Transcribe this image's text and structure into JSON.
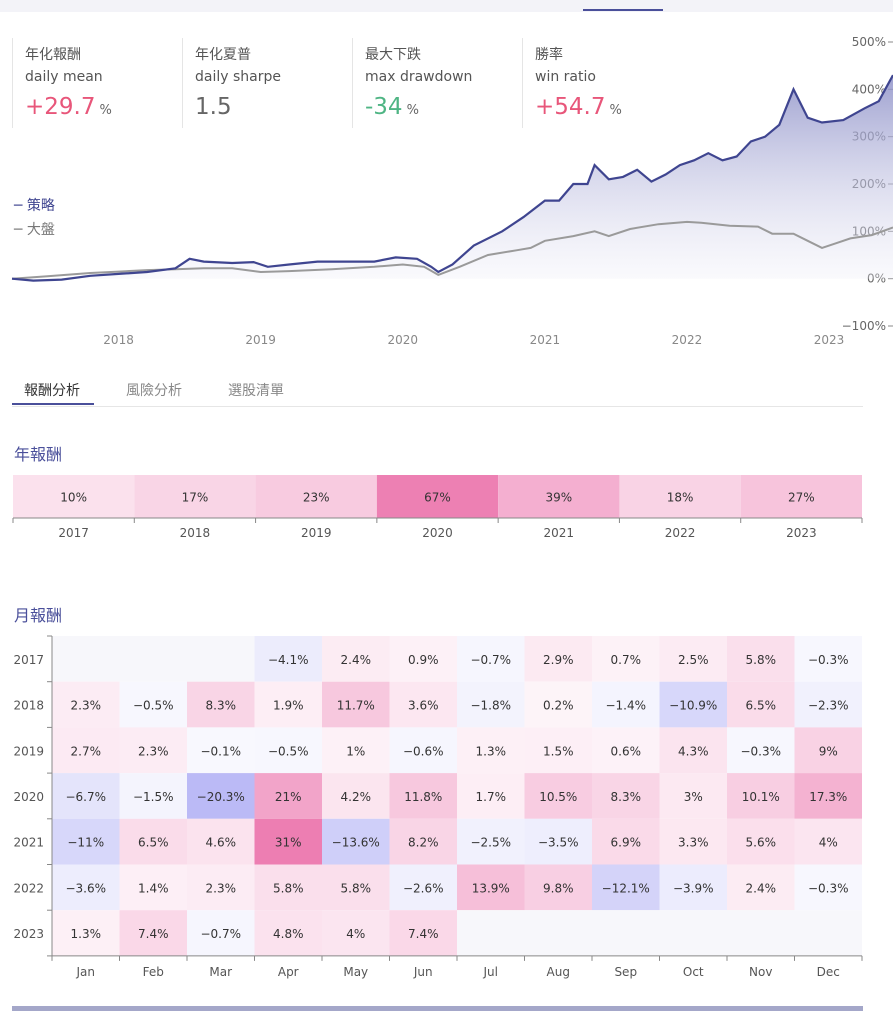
{
  "metrics": [
    {
      "zh": "年化報酬",
      "en": "daily mean",
      "value": "+29.7",
      "unit": "%",
      "tone": "pos"
    },
    {
      "zh": "年化夏普",
      "en": "daily sharpe",
      "value": "1.5",
      "unit": "",
      "tone": "neu"
    },
    {
      "zh": "最大下跌",
      "en": "max drawdown",
      "value": "-34",
      "unit": "%",
      "tone": "neg"
    },
    {
      "zh": "勝率",
      "en": "win ratio",
      "value": "+54.7",
      "unit": "%",
      "tone": "pos"
    }
  ],
  "legend": {
    "strategy": "─ 策略",
    "market": "─ 大盤"
  },
  "tabs": [
    "報酬分析",
    "風險分析",
    "選股清單"
  ],
  "sections": {
    "yearly": "年報酬",
    "monthly": "月報酬"
  },
  "colors": {
    "strategy": "#3f4590",
    "market": "#9a9a9a",
    "positive": "#e7559a",
    "negative": "#8f8ef0"
  },
  "chart_data": [
    {
      "type": "line",
      "x_ticks": [
        "2018",
        "2019",
        "2020",
        "2021",
        "2022",
        "2023"
      ],
      "y_ticks": [
        "500%",
        "400%",
        "300%",
        "200%",
        "100%",
        "0%",
        "−100%"
      ],
      "ylim": [
        -100,
        500
      ],
      "series": [
        {
          "name": "策略",
          "points": [
            [
              2017.25,
              0
            ],
            [
              2017.4,
              -4
            ],
            [
              2017.6,
              -2
            ],
            [
              2017.8,
              6
            ],
            [
              2018.0,
              10
            ],
            [
              2018.2,
              14
            ],
            [
              2018.4,
              22
            ],
            [
              2018.5,
              42
            ],
            [
              2018.6,
              36
            ],
            [
              2018.8,
              33
            ],
            [
              2018.95,
              35
            ],
            [
              2019.05,
              25
            ],
            [
              2019.2,
              30
            ],
            [
              2019.4,
              36
            ],
            [
              2019.6,
              36
            ],
            [
              2019.8,
              36
            ],
            [
              2019.95,
              45
            ],
            [
              2020.1,
              42
            ],
            [
              2020.2,
              25
            ],
            [
              2020.25,
              14
            ],
            [
              2020.35,
              30
            ],
            [
              2020.5,
              70
            ],
            [
              2020.7,
              100
            ],
            [
              2020.85,
              130
            ],
            [
              2021.0,
              165
            ],
            [
              2021.1,
              165
            ],
            [
              2021.2,
              200
            ],
            [
              2021.3,
              200
            ],
            [
              2021.35,
              240
            ],
            [
              2021.45,
              210
            ],
            [
              2021.55,
              215
            ],
            [
              2021.65,
              230
            ],
            [
              2021.75,
              205
            ],
            [
              2021.85,
              220
            ],
            [
              2021.95,
              240
            ],
            [
              2022.05,
              250
            ],
            [
              2022.15,
              265
            ],
            [
              2022.25,
              250
            ],
            [
              2022.35,
              258
            ],
            [
              2022.45,
              290
            ],
            [
              2022.55,
              300
            ],
            [
              2022.65,
              325
            ],
            [
              2022.75,
              400
            ],
            [
              2022.85,
              340
            ],
            [
              2022.95,
              330
            ],
            [
              2023.1,
              335
            ],
            [
              2023.25,
              360
            ],
            [
              2023.35,
              375
            ],
            [
              2023.45,
              430
            ]
          ]
        },
        {
          "name": "大盤",
          "points": [
            [
              2017.25,
              0
            ],
            [
              2017.5,
              5
            ],
            [
              2017.8,
              12
            ],
            [
              2018.0,
              15
            ],
            [
              2018.2,
              18
            ],
            [
              2018.4,
              20
            ],
            [
              2018.6,
              22
            ],
            [
              2018.8,
              22
            ],
            [
              2018.9,
              18
            ],
            [
              2019.0,
              14
            ],
            [
              2019.2,
              16
            ],
            [
              2019.5,
              20
            ],
            [
              2019.8,
              25
            ],
            [
              2020.0,
              30
            ],
            [
              2020.15,
              25
            ],
            [
              2020.25,
              8
            ],
            [
              2020.4,
              25
            ],
            [
              2020.6,
              50
            ],
            [
              2020.8,
              60
            ],
            [
              2020.9,
              65
            ],
            [
              2021.0,
              80
            ],
            [
              2021.2,
              90
            ],
            [
              2021.35,
              100
            ],
            [
              2021.45,
              90
            ],
            [
              2021.6,
              105
            ],
            [
              2021.8,
              115
            ],
            [
              2022.0,
              120
            ],
            [
              2022.1,
              118
            ],
            [
              2022.3,
              112
            ],
            [
              2022.5,
              110
            ],
            [
              2022.6,
              95
            ],
            [
              2022.75,
              95
            ],
            [
              2022.85,
              80
            ],
            [
              2022.95,
              65
            ],
            [
              2023.05,
              75
            ],
            [
              2023.15,
              85
            ],
            [
              2023.3,
              92
            ],
            [
              2023.45,
              108
            ]
          ]
        }
      ]
    },
    {
      "type": "heatmap",
      "title": "年報酬",
      "categories": [
        "2017",
        "2018",
        "2019",
        "2020",
        "2021",
        "2022",
        "2023"
      ],
      "values": [
        10,
        17,
        23,
        67,
        39,
        18,
        27
      ],
      "labels": [
        "10%",
        "17%",
        "23%",
        "67%",
        "39%",
        "18%",
        "27%"
      ]
    },
    {
      "type": "heatmap",
      "title": "月報酬",
      "rows": [
        "2017",
        "2018",
        "2019",
        "2020",
        "2021",
        "2022",
        "2023"
      ],
      "columns": [
        "Jan",
        "Feb",
        "Mar",
        "Apr",
        "May",
        "Jun",
        "Jul",
        "Aug",
        "Sep",
        "Oct",
        "Nov",
        "Dec"
      ],
      "values": [
        [
          null,
          null,
          null,
          -4.1,
          2.4,
          0.9,
          -0.7,
          2.9,
          0.7,
          2.5,
          5.8,
          -0.3
        ],
        [
          2.3,
          -0.5,
          8.3,
          1.9,
          11.7,
          3.6,
          -1.8,
          0.2,
          -1.4,
          -10.9,
          6.5,
          -2.3
        ],
        [
          2.7,
          2.3,
          -0.1,
          -0.5,
          1,
          -0.6,
          1.3,
          1.5,
          0.6,
          4.3,
          -0.3,
          9
        ],
        [
          -6.7,
          -1.5,
          -20.3,
          21,
          4.2,
          11.8,
          1.7,
          10.5,
          8.3,
          3,
          10.1,
          17.3
        ],
        [
          -11,
          6.5,
          4.6,
          31,
          -13.6,
          8.2,
          -2.5,
          -3.5,
          6.9,
          3.3,
          5.6,
          4
        ],
        [
          -3.6,
          1.4,
          2.3,
          5.8,
          5.8,
          -2.6,
          13.9,
          9.8,
          -12.1,
          -3.9,
          2.4,
          -0.3
        ],
        [
          1.3,
          7.4,
          -0.7,
          4.8,
          4,
          7.4,
          null,
          null,
          null,
          null,
          null,
          null
        ]
      ],
      "labels": [
        [
          "",
          "",
          "",
          "−4.1%",
          "2.4%",
          "0.9%",
          "−0.7%",
          "2.9%",
          "0.7%",
          "2.5%",
          "5.8%",
          "−0.3%"
        ],
        [
          "2.3%",
          "−0.5%",
          "8.3%",
          "1.9%",
          "11.7%",
          "3.6%",
          "−1.8%",
          "0.2%",
          "−1.4%",
          "−10.9%",
          "6.5%",
          "−2.3%"
        ],
        [
          "2.7%",
          "2.3%",
          "−0.1%",
          "−0.5%",
          "1%",
          "−0.6%",
          "1.3%",
          "1.5%",
          "0.6%",
          "4.3%",
          "−0.3%",
          "9%"
        ],
        [
          "−6.7%",
          "−1.5%",
          "−20.3%",
          "21%",
          "4.2%",
          "11.8%",
          "1.7%",
          "10.5%",
          "8.3%",
          "3%",
          "10.1%",
          "17.3%"
        ],
        [
          "−11%",
          "6.5%",
          "4.6%",
          "31%",
          "−13.6%",
          "8.2%",
          "−2.5%",
          "−3.5%",
          "6.9%",
          "3.3%",
          "5.6%",
          "4%"
        ],
        [
          "−3.6%",
          "1.4%",
          "2.3%",
          "5.8%",
          "5.8%",
          "−2.6%",
          "13.9%",
          "9.8%",
          "−12.1%",
          "−3.9%",
          "2.4%",
          "−0.3%"
        ],
        [
          "1.3%",
          "7.4%",
          "−0.7%",
          "4.8%",
          "4%",
          "7.4%",
          "",
          "",
          "",
          "",
          "",
          ""
        ]
      ]
    }
  ]
}
